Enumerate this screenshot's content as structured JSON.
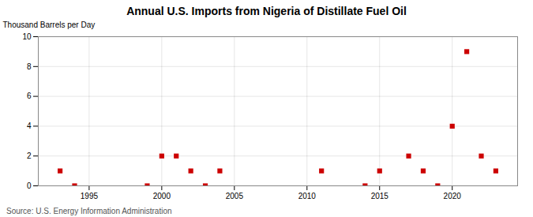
{
  "chart_data": {
    "type": "scatter",
    "title": "Annual U.S. Imports from Nigeria of Distillate Fuel Oil",
    "ylabel": "Thousand Barrels per Day",
    "source": "Source: U.S. Energy Information Administration",
    "x": [
      1993,
      1994,
      1999,
      2000,
      2001,
      2002,
      2003,
      2004,
      2011,
      2014,
      2015,
      2017,
      2018,
      2019,
      2020,
      2021,
      2022,
      2023
    ],
    "values": [
      1,
      0,
      0,
      2,
      2,
      1,
      0,
      1,
      1,
      0,
      1,
      2,
      1,
      0,
      4,
      9,
      2,
      1
    ],
    "color": "#cc0000",
    "marker": "square",
    "xlim": [
      1991.5,
      2024.5
    ],
    "ylim": [
      0,
      10
    ],
    "xticks": [
      1995,
      2000,
      2005,
      2010,
      2015,
      2020
    ],
    "yticks": [
      0,
      2,
      4,
      6,
      8,
      10
    ],
    "grid": true
  }
}
